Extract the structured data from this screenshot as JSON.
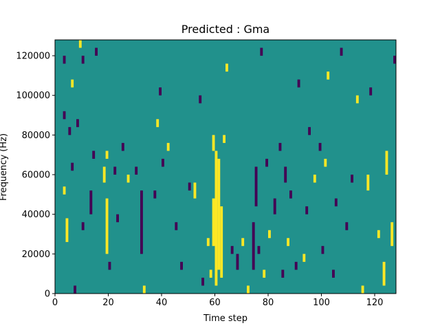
{
  "chart_data": {
    "type": "heatmap",
    "title": "Predicted : Gma",
    "xlabel": "Time step",
    "ylabel": "Frequency (Hz)",
    "xlim": [
      0,
      128
    ],
    "ylim": [
      0,
      128000
    ],
    "xticks": [
      0,
      20,
      40,
      60,
      80,
      100,
      120
    ],
    "xtick_labels": [
      "0",
      "20",
      "40",
      "60",
      "80",
      "100",
      "120"
    ],
    "yticks": [
      0,
      20000,
      40000,
      60000,
      80000,
      100000,
      120000
    ],
    "ytick_labels": [
      "0",
      "20000",
      "40000",
      "60000",
      "80000",
      "100000",
      "120000"
    ],
    "grid": false,
    "legend": "none",
    "colors": {
      "background": "#21918c",
      "low": "#440154",
      "high": "#fde725"
    },
    "cells": [
      {
        "t": 3,
        "f0": 116000,
        "f1": 120000,
        "level": "low"
      },
      {
        "t": 3,
        "f0": 88000,
        "f1": 92000,
        "level": "low"
      },
      {
        "t": 3,
        "f0": 50000,
        "f1": 54000,
        "level": "high"
      },
      {
        "t": 4,
        "f0": 26000,
        "f1": 38000,
        "level": "high"
      },
      {
        "t": 5,
        "f0": 80000,
        "f1": 84000,
        "level": "low"
      },
      {
        "t": 6,
        "f0": 62000,
        "f1": 66000,
        "level": "low"
      },
      {
        "t": 6,
        "f0": 104000,
        "f1": 108000,
        "level": "high"
      },
      {
        "t": 7,
        "f0": 0,
        "f1": 4000,
        "level": "low"
      },
      {
        "t": 8,
        "f0": 84000,
        "f1": 88000,
        "level": "low"
      },
      {
        "t": 9,
        "f0": 124000,
        "f1": 128000,
        "level": "high"
      },
      {
        "t": 10,
        "f0": 32000,
        "f1": 36000,
        "level": "low"
      },
      {
        "t": 10,
        "f0": 116000,
        "f1": 120000,
        "level": "low"
      },
      {
        "t": 13,
        "f0": 40000,
        "f1": 52000,
        "level": "low"
      },
      {
        "t": 14,
        "f0": 68000,
        "f1": 72000,
        "level": "low"
      },
      {
        "t": 15,
        "f0": 120000,
        "f1": 124000,
        "level": "low"
      },
      {
        "t": 18,
        "f0": 56000,
        "f1": 64000,
        "level": "high"
      },
      {
        "t": 19,
        "f0": 20000,
        "f1": 48000,
        "level": "high"
      },
      {
        "t": 19,
        "f0": 68000,
        "f1": 72000,
        "level": "high"
      },
      {
        "t": 20,
        "f0": 12000,
        "f1": 16000,
        "level": "low"
      },
      {
        "t": 22,
        "f0": 60000,
        "f1": 64000,
        "level": "low"
      },
      {
        "t": 23,
        "f0": 36000,
        "f1": 40000,
        "level": "low"
      },
      {
        "t": 25,
        "f0": 72000,
        "f1": 76000,
        "level": "low"
      },
      {
        "t": 27,
        "f0": 56000,
        "f1": 60000,
        "level": "high"
      },
      {
        "t": 30,
        "f0": 60000,
        "f1": 64000,
        "level": "low"
      },
      {
        "t": 32,
        "f0": 20000,
        "f1": 52000,
        "level": "low"
      },
      {
        "t": 33,
        "f0": 0,
        "f1": 4000,
        "level": "high"
      },
      {
        "t": 37,
        "f0": 48000,
        "f1": 52000,
        "level": "low"
      },
      {
        "t": 38,
        "f0": 84000,
        "f1": 88000,
        "level": "high"
      },
      {
        "t": 39,
        "f0": 100000,
        "f1": 104000,
        "level": "low"
      },
      {
        "t": 40,
        "f0": 64000,
        "f1": 68000,
        "level": "low"
      },
      {
        "t": 42,
        "f0": 72000,
        "f1": 76000,
        "level": "high"
      },
      {
        "t": 45,
        "f0": 32000,
        "f1": 36000,
        "level": "low"
      },
      {
        "t": 47,
        "f0": 12000,
        "f1": 16000,
        "level": "low"
      },
      {
        "t": 50,
        "f0": 52000,
        "f1": 56000,
        "level": "low"
      },
      {
        "t": 52,
        "f0": 48000,
        "f1": 56000,
        "level": "high"
      },
      {
        "t": 54,
        "f0": 96000,
        "f1": 100000,
        "level": "low"
      },
      {
        "t": 55,
        "f0": 4000,
        "f1": 8000,
        "level": "low"
      },
      {
        "t": 57,
        "f0": 24000,
        "f1": 28000,
        "level": "high"
      },
      {
        "t": 58,
        "f0": 8000,
        "f1": 12000,
        "level": "high"
      },
      {
        "t": 59,
        "f0": 24000,
        "f1": 48000,
        "level": "high"
      },
      {
        "t": 59,
        "f0": 72000,
        "f1": 80000,
        "level": "high"
      },
      {
        "t": 60,
        "f0": 4000,
        "f1": 72000,
        "level": "high"
      },
      {
        "t": 61,
        "f0": 12000,
        "f1": 68000,
        "level": "high"
      },
      {
        "t": 62,
        "f0": 8000,
        "f1": 44000,
        "level": "high"
      },
      {
        "t": 63,
        "f0": 76000,
        "f1": 80000,
        "level": "high"
      },
      {
        "t": 64,
        "f0": 112000,
        "f1": 116000,
        "level": "high"
      },
      {
        "t": 66,
        "f0": 20000,
        "f1": 24000,
        "level": "low"
      },
      {
        "t": 68,
        "f0": 12000,
        "f1": 20000,
        "level": "low"
      },
      {
        "t": 70,
        "f0": 24000,
        "f1": 28000,
        "level": "high"
      },
      {
        "t": 72,
        "f0": 0,
        "f1": 4000,
        "level": "high"
      },
      {
        "t": 74,
        "f0": 12000,
        "f1": 36000,
        "level": "low"
      },
      {
        "t": 75,
        "f0": 44000,
        "f1": 64000,
        "level": "low"
      },
      {
        "t": 76,
        "f0": 20000,
        "f1": 24000,
        "level": "low"
      },
      {
        "t": 77,
        "f0": 120000,
        "f1": 124000,
        "level": "low"
      },
      {
        "t": 78,
        "f0": 8000,
        "f1": 12000,
        "level": "high"
      },
      {
        "t": 79,
        "f0": 64000,
        "f1": 68000,
        "level": "low"
      },
      {
        "t": 80,
        "f0": 28000,
        "f1": 32000,
        "level": "high"
      },
      {
        "t": 82,
        "f0": 40000,
        "f1": 48000,
        "level": "low"
      },
      {
        "t": 84,
        "f0": 72000,
        "f1": 76000,
        "level": "low"
      },
      {
        "t": 85,
        "f0": 8000,
        "f1": 12000,
        "level": "low"
      },
      {
        "t": 86,
        "f0": 56000,
        "f1": 64000,
        "level": "low"
      },
      {
        "t": 87,
        "f0": 24000,
        "f1": 28000,
        "level": "high"
      },
      {
        "t": 88,
        "f0": 48000,
        "f1": 52000,
        "level": "low"
      },
      {
        "t": 90,
        "f0": 12000,
        "f1": 16000,
        "level": "low"
      },
      {
        "t": 91,
        "f0": 104000,
        "f1": 108000,
        "level": "low"
      },
      {
        "t": 93,
        "f0": 16000,
        "f1": 20000,
        "level": "high"
      },
      {
        "t": 94,
        "f0": 40000,
        "f1": 44000,
        "level": "low"
      },
      {
        "t": 95,
        "f0": 80000,
        "f1": 84000,
        "level": "low"
      },
      {
        "t": 97,
        "f0": 56000,
        "f1": 60000,
        "level": "high"
      },
      {
        "t": 99,
        "f0": 72000,
        "f1": 76000,
        "level": "low"
      },
      {
        "t": 100,
        "f0": 20000,
        "f1": 24000,
        "level": "low"
      },
      {
        "t": 101,
        "f0": 64000,
        "f1": 68000,
        "level": "high"
      },
      {
        "t": 102,
        "f0": 108000,
        "f1": 112000,
        "level": "high"
      },
      {
        "t": 104,
        "f0": 8000,
        "f1": 12000,
        "level": "low"
      },
      {
        "t": 105,
        "f0": 44000,
        "f1": 48000,
        "level": "low"
      },
      {
        "t": 107,
        "f0": 120000,
        "f1": 124000,
        "level": "low"
      },
      {
        "t": 109,
        "f0": 32000,
        "f1": 36000,
        "level": "low"
      },
      {
        "t": 111,
        "f0": 56000,
        "f1": 60000,
        "level": "low"
      },
      {
        "t": 113,
        "f0": 96000,
        "f1": 100000,
        "level": "high"
      },
      {
        "t": 115,
        "f0": 0,
        "f1": 4000,
        "level": "high"
      },
      {
        "t": 117,
        "f0": 52000,
        "f1": 60000,
        "level": "high"
      },
      {
        "t": 118,
        "f0": 100000,
        "f1": 104000,
        "level": "low"
      },
      {
        "t": 121,
        "f0": 28000,
        "f1": 32000,
        "level": "high"
      },
      {
        "t": 123,
        "f0": 4000,
        "f1": 16000,
        "level": "high"
      },
      {
        "t": 124,
        "f0": 60000,
        "f1": 72000,
        "level": "high"
      },
      {
        "t": 126,
        "f0": 24000,
        "f1": 36000,
        "level": "high"
      },
      {
        "t": 127,
        "f0": 116000,
        "f1": 120000,
        "level": "low"
      }
    ]
  }
}
